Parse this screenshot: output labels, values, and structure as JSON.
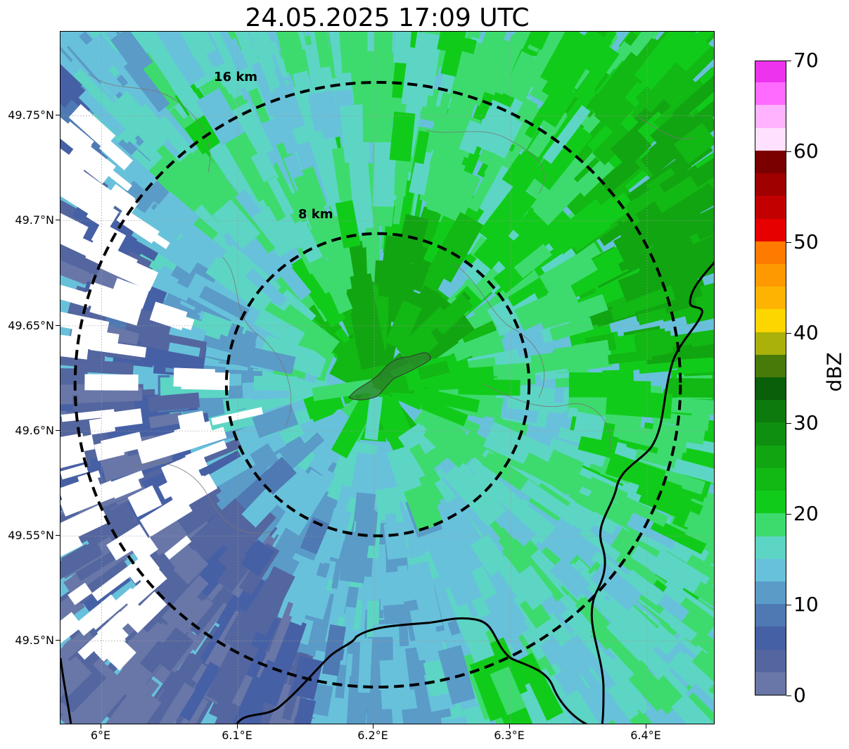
{
  "title": "24.05.2025 17:09 UTC",
  "map": {
    "lon_range": [
      5.97,
      6.45
    ],
    "lat_range": [
      49.46,
      49.79
    ],
    "center": {
      "lon": 6.2025,
      "lat": 49.622
    },
    "lat_ticks": [
      {
        "value": 49.75,
        "label": "49.75°N"
      },
      {
        "value": 49.7,
        "label": "49.7°N"
      },
      {
        "value": 49.65,
        "label": "49.65°N"
      },
      {
        "value": 49.6,
        "label": "49.6°N"
      },
      {
        "value": 49.55,
        "label": "49.55°N"
      },
      {
        "value": 49.5,
        "label": "49.5°N"
      }
    ],
    "lon_ticks": [
      {
        "value": 6.0,
        "label": "6°E"
      },
      {
        "value": 6.1,
        "label": "6.1°E"
      },
      {
        "value": 6.2,
        "label": "6.2°E"
      },
      {
        "value": 6.3,
        "label": "6.3°E"
      },
      {
        "value": 6.4,
        "label": "6.4°E"
      }
    ],
    "range_rings": [
      {
        "radius_km": 8,
        "label": "8 km"
      },
      {
        "radius_km": 16,
        "label": "16 km"
      }
    ],
    "gridlines": true
  },
  "colorbar": {
    "label": "dBZ",
    "min": 0,
    "max": 70,
    "step": 2.5,
    "tick_labels": [
      "0",
      "10",
      "20",
      "30",
      "40",
      "50",
      "60",
      "70"
    ],
    "colors": [
      "#6877a8",
      "#54669f",
      "#4660a5",
      "#4e79b3",
      "#5a9bc8",
      "#68c1db",
      "#5dd5c4",
      "#3ddb6e",
      "#11cb1a",
      "#12b813",
      "#12a512",
      "#0f8f0f",
      "#0c7a0c",
      "#0a5f0a",
      "#487a0a",
      "#aab10a",
      "#fdd600",
      "#feb302",
      "#fe9902",
      "#fe7b00",
      "#e70000",
      "#c30000",
      "#a00000",
      "#7a0000",
      "#ffe0ff",
      "#ffb3ff",
      "#ff6bff",
      "#ee33ee"
    ]
  }
}
